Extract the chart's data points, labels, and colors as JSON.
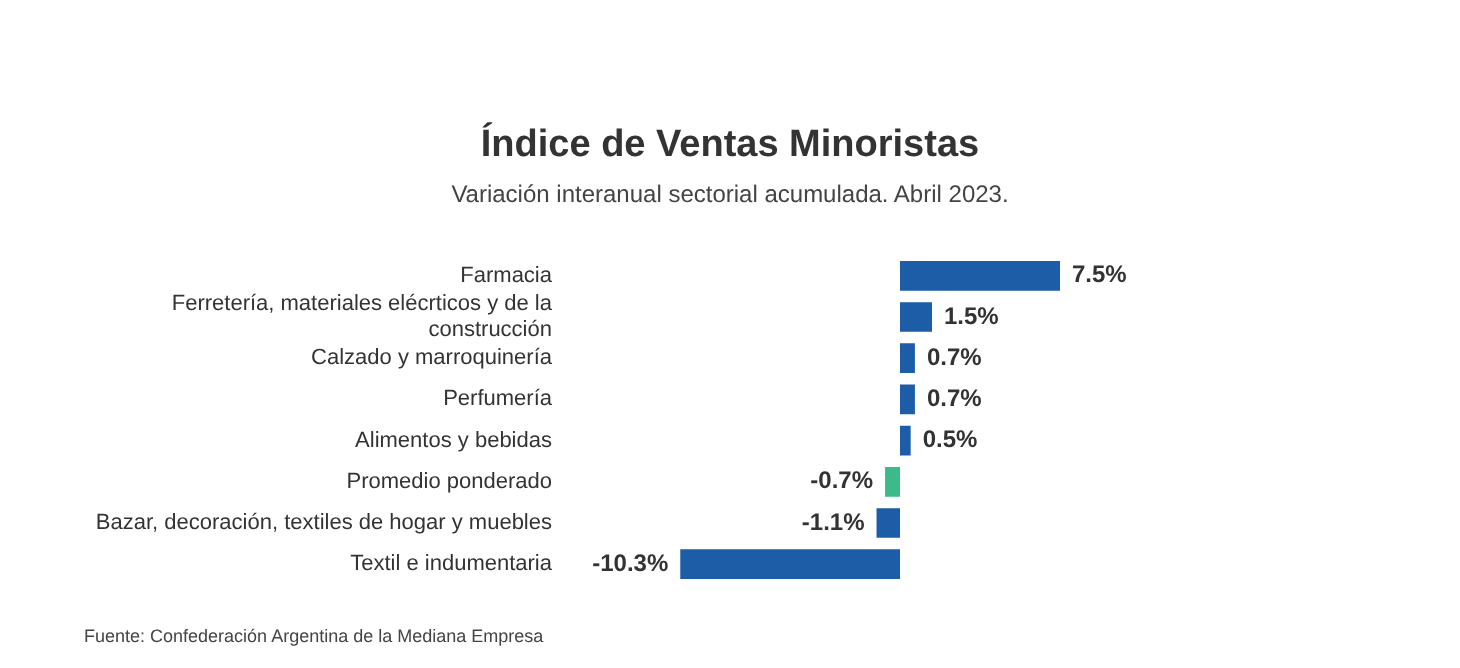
{
  "chart_data": {
    "type": "bar",
    "orientation": "horizontal",
    "title": "Índice de Ventas Minoristas",
    "subtitle": "Variación interanual sectorial acumulada. Abril 2023.",
    "categories": [
      "Farmacia",
      "Ferretería, materiales elécrticos y de la construcción",
      "Calzado y marroquinería",
      "Perfumería",
      "Alimentos y bebidas",
      "Promedio ponderado",
      "Bazar, decoración, textiles de hogar y muebles",
      "Textil e indumentaria"
    ],
    "values": [
      7.5,
      1.5,
      0.7,
      0.7,
      0.5,
      -0.7,
      -1.1,
      -10.3
    ],
    "colors": [
      "#1d5da8",
      "#1d5da8",
      "#1d5da8",
      "#1d5da8",
      "#1d5da8",
      "#3dba8a",
      "#1d5da8",
      "#1d5da8"
    ],
    "value_labels": [
      "7.5%",
      "1.5%",
      "0.7%",
      "0.7%",
      "0.5%",
      "-0.7%",
      "-1.1%",
      "-10.3%"
    ],
    "annotations": [
      "Fuente: Confederación Argentina de la Mediana Empresa"
    ],
    "legend": false,
    "grid": false,
    "tick_labels": "y"
  }
}
